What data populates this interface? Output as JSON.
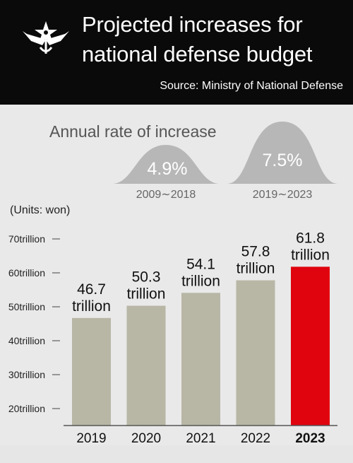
{
  "header": {
    "title_line1": "Projected increases for",
    "title_line2": "national defense budget",
    "source": "Source: Ministry of National Defense"
  },
  "emblem": {
    "icon": "anchor-star-wings-emblem"
  },
  "rates": {
    "title": "Annual rate of increase",
    "items": [
      {
        "value": "4.9%",
        "period": "2009∼2018"
      },
      {
        "value": "7.5%",
        "period": "2019∼2023"
      }
    ]
  },
  "chart_data": {
    "type": "bar",
    "units_label": "(Units: won)",
    "categories": [
      "2019",
      "2020",
      "2021",
      "2022",
      "2023"
    ],
    "values": [
      46.7,
      50.3,
      54.1,
      57.8,
      61.8
    ],
    "value_labels": [
      [
        "46.7",
        "trillion"
      ],
      [
        "50.3",
        "trillion"
      ],
      [
        "54.1",
        "trillion"
      ],
      [
        "57.8",
        "trillion"
      ],
      [
        "61.8",
        "trillion"
      ]
    ],
    "yticks": [
      20,
      30,
      40,
      50,
      60,
      70
    ],
    "ytick_labels": [
      "20trillion",
      "30trillion",
      "40trillion",
      "50trillion",
      "60trillion",
      "70trillion"
    ],
    "ylim": [
      15,
      75
    ],
    "colors": {
      "bar": "#b8b6a5",
      "highlight": "#e0040e",
      "hump": "#b7b7b7"
    },
    "highlight_index": 4,
    "grid": false
  }
}
